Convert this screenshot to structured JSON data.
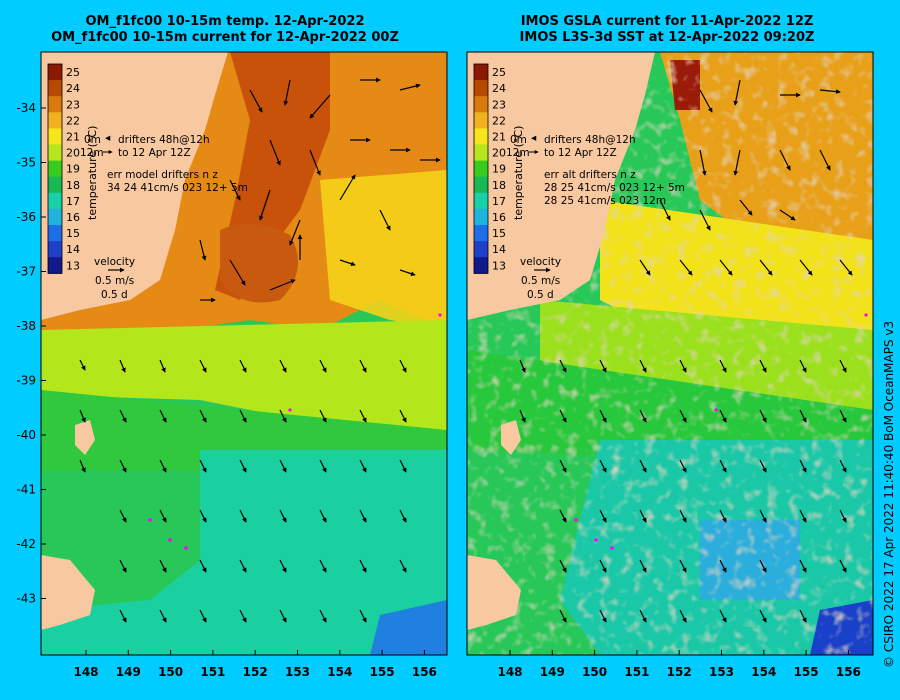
{
  "left_panel": {
    "title_line1": "OM_f1fc00 10-15m temp. 12-Apr-2022",
    "title_line2": "OM_f1fc00 10-15m current for 12-Apr-2022 00Z",
    "drifter_legend_line1": "drifters 48h@12h",
    "drifter_legend_line2": "to 12 Apr 12Z",
    "drifter_legend_prefix1": "0m",
    "drifter_legend_prefix2": "12m",
    "err_line1": "err model drifters n z",
    "err_line2": "34 24 41cm/s 023 12+ 5m",
    "velocity_label": "velocity",
    "velocity_speed": "0.5 m/s",
    "velocity_time": "0.5 d"
  },
  "right_panel": {
    "title_line1": "IMOS GSLA current for 11-Apr-2022 12Z",
    "title_line2": "IMOS L3S-3d SST at 12-Apr-2022 09:20Z",
    "drifter_legend_line1": "drifters 48h@12h",
    "drifter_legend_line2": "to 12 Apr 12Z",
    "drifter_legend_prefix1": "0m",
    "drifter_legend_prefix2": "12m",
    "err_line1": "err alt drifters n z",
    "err_line2": "28 25 41cm/s 023 12+ 5m",
    "err_line3": "28 25 41cm/s 023 12m",
    "velocity_label": "velocity",
    "velocity_speed": "0.5 m/s",
    "velocity_time": "0.5 d"
  },
  "colorbar": {
    "label": "temperature (°C)",
    "ticks": [
      "25",
      "24",
      "23",
      "22",
      "21",
      "20",
      "19",
      "18",
      "17",
      "16",
      "15",
      "14",
      "13"
    ],
    "colors": [
      "#8b1a00",
      "#b84a00",
      "#d97a0c",
      "#f2b220",
      "#f5e51a",
      "#b8e61c",
      "#38cc1e",
      "#18b854",
      "#1ad0a8",
      "#20b4dc",
      "#1e6ee8",
      "#1e40c8",
      "#101a8a"
    ]
  },
  "axes": {
    "y_ticks": [
      "-34",
      "-35",
      "-36",
      "-37",
      "-38",
      "-39",
      "-40",
      "-41",
      "-42",
      "-43"
    ],
    "x_ticks": [
      "148",
      "149",
      "150",
      "151",
      "152",
      "153",
      "154",
      "155",
      "156"
    ]
  },
  "credit": "© CSIRO 2022  17 Apr 2022 11:40:40 BoM OceanMAPS v3",
  "colors": {
    "background": "#00ccff",
    "land": "#f8c8a0",
    "no_data": "#c8a886"
  }
}
